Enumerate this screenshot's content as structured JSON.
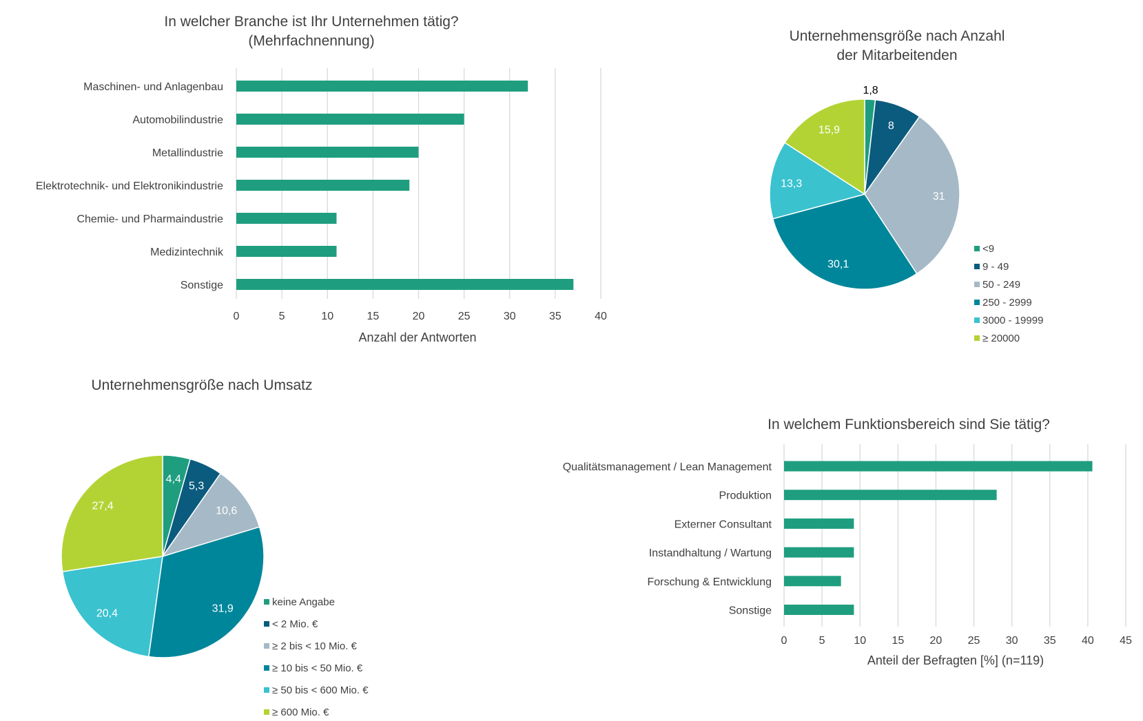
{
  "chart_data": [
    {
      "type": "bar",
      "orientation": "horizontal",
      "title": "In welcher Branche ist Ihr Unternehmen tätig? (Mehrfachnennung)",
      "title_lines": [
        "In welcher Branche ist Ihr Unternehmen tätig?",
        "(Mehrfachnennung)"
      ],
      "categories": [
        "Maschinen- und Anlagenbau",
        "Automobilindustrie",
        "Metallindustrie",
        "Elektrotechnik- und Elektronikindustrie",
        "Chemie- und Pharmaindustrie",
        "Medizintechnik",
        "Sonstige"
      ],
      "values": [
        32,
        25,
        20,
        19,
        11,
        11,
        37
      ],
      "xlabel": "Anzahl der Antworten",
      "xlim": [
        0,
        40
      ],
      "xticks": [
        0,
        5,
        10,
        15,
        20,
        25,
        30,
        35,
        40
      ],
      "grid": "vertical",
      "color": "#1f9e7f"
    },
    {
      "type": "pie",
      "title": "Unternehmensgröße nach Anzahl der Mitarbeitenden",
      "title_lines": [
        "Unternehmensgröße nach Anzahl",
        "der Mitarbeitenden"
      ],
      "labels": [
        "<9",
        "9 - 49",
        "50 - 249",
        "250 - 2999",
        "3000 - 19999",
        "≥ 20000"
      ],
      "values": [
        1.8,
        8,
        31,
        30.1,
        13.3,
        15.9
      ],
      "data_labels": [
        "1,8",
        "8",
        "31",
        "30,1",
        "13,3",
        "15,9"
      ],
      "colors": [
        "#1f9e7f",
        "#0b5b7e",
        "#a6b9c6",
        "#00869a",
        "#3ac2cf",
        "#b3d335"
      ],
      "legend": "right"
    },
    {
      "type": "pie",
      "title": "Unternehmensgröße nach Umsatz",
      "title_lines": [
        "Unternehmensgröße nach Umsatz"
      ],
      "labels": [
        "keine Angabe",
        "< 2 Mio. €",
        "≥ 2 bis < 10 Mio. €",
        "≥ 10 bis < 50 Mio. €",
        "≥ 50 bis < 600 Mio. €",
        "≥ 600 Mio. €"
      ],
      "values": [
        4.4,
        5.3,
        10.6,
        31.9,
        20.4,
        27.4
      ],
      "data_labels": [
        "4,4",
        "5,3",
        "10,6",
        "31,9",
        "20,4",
        "27,4"
      ],
      "colors": [
        "#1f9e7f",
        "#0b5b7e",
        "#a6b9c6",
        "#00869a",
        "#3ac2cf",
        "#b3d335"
      ],
      "legend": "right"
    },
    {
      "type": "bar",
      "orientation": "horizontal",
      "title": "In welchem Funktionsbereich sind Sie tätig?",
      "title_lines": [
        "In welchem Funktionsbereich sind Sie tätig?"
      ],
      "categories": [
        "Qualitätsmanagement / Lean Management",
        "Produktion",
        "Externer Consultant",
        "Instandhaltung / Wartung",
        "Forschung & Entwicklung",
        "Sonstige"
      ],
      "values": [
        40.6,
        28,
        9.2,
        9.2,
        7.5,
        9.2
      ],
      "xlabel": "Anteil der Befragten [%] (n=119)",
      "xlim": [
        0,
        45
      ],
      "xticks": [
        0,
        5,
        10,
        15,
        20,
        25,
        30,
        35,
        40,
        45
      ],
      "grid": "vertical",
      "color": "#1f9e7f"
    }
  ]
}
